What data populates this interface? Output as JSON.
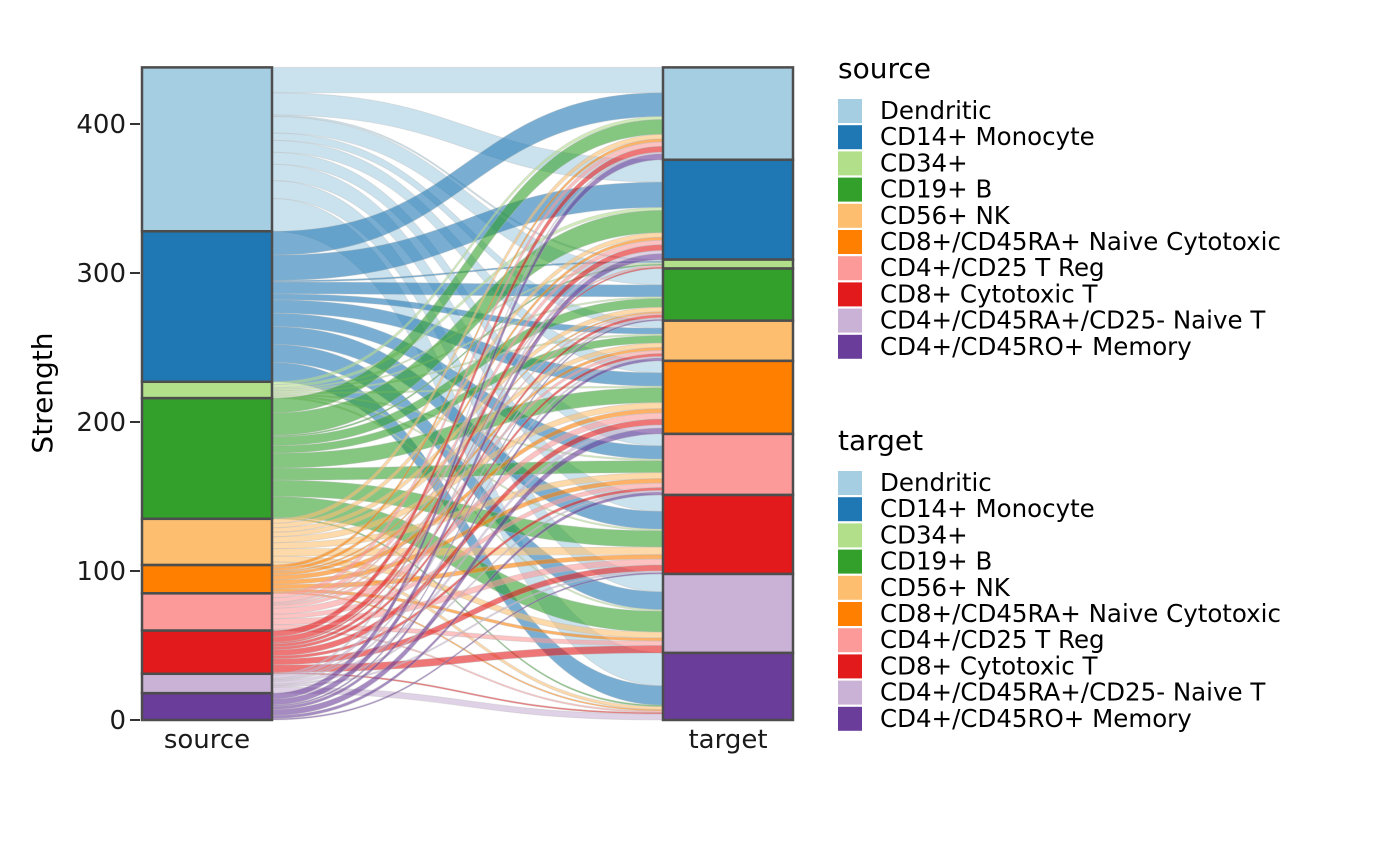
{
  "chart_data": {
    "type": "alluvial",
    "ylabel": "Strength",
    "ylim": [
      0,
      437
    ],
    "y_ticks": [
      0,
      100,
      200,
      300,
      400
    ],
    "axes": [
      "source",
      "target"
    ],
    "categories": [
      "Dendritic",
      "CD14+ Monocyte",
      "CD34+",
      "CD19+ B",
      "CD56+ NK",
      "CD8+/CD45RA+ Naive Cytotoxic",
      "CD4+/CD25 T Reg",
      "CD8+ Cytotoxic T",
      "CD4+/CD45RA+/CD25- Naive T",
      "CD4+/CD45RO+ Memory"
    ],
    "colors": [
      "#a6cee3",
      "#1f78b4",
      "#b2df8a",
      "#33a02c",
      "#fdbf6f",
      "#ff7f00",
      "#fb9a99",
      "#e31a1c",
      "#cab2d6",
      "#6a3d9a"
    ],
    "source_totals": [
      110,
      101,
      11,
      81,
      31,
      19,
      25,
      29,
      13,
      17
    ],
    "target_totals": [
      62,
      67,
      6,
      35,
      27,
      49,
      41,
      53,
      53,
      44
    ],
    "flows": [
      [
        17,
        15,
        1,
        11,
        5,
        8,
        8,
        11,
        12,
        22
      ],
      [
        16,
        17,
        1,
        8,
        4,
        9,
        9,
        12,
        12,
        13
      ],
      [
        2,
        2,
        1,
        1,
        1,
        1,
        1,
        1,
        1,
        0
      ],
      [
        10,
        15,
        1,
        6,
        5,
        10,
        8,
        11,
        14,
        1
      ],
      [
        3,
        3,
        0,
        3,
        3,
        4,
        4,
        5,
        4,
        2
      ],
      [
        2,
        2,
        0,
        1,
        2,
        3,
        3,
        3,
        2,
        1
      ],
      [
        3,
        3,
        1,
        1,
        2,
        4,
        3,
        4,
        3,
        1
      ],
      [
        4,
        4,
        1,
        2,
        2,
        4,
        2,
        4,
        5,
        1
      ],
      [
        1,
        2,
        0,
        1,
        1,
        2,
        1,
        1,
        0,
        4
      ],
      [
        4,
        4,
        0,
        1,
        2,
        4,
        2,
        1,
        0,
        -1
      ]
    ],
    "legends": [
      {
        "title": "source",
        "entries": [
          "Dendritic",
          "CD14+ Monocyte",
          "CD34+",
          "CD19+ B",
          "CD56+ NK",
          "CD8+/CD45RA+ Naive Cytotoxic",
          "CD4+/CD25 T Reg",
          "CD8+ Cytotoxic T",
          "CD4+/CD45RA+/CD25- Naive T",
          "CD4+/CD45RO+ Memory"
        ]
      },
      {
        "title": "target",
        "entries": [
          "Dendritic",
          "CD14+ Monocyte",
          "CD34+",
          "CD19+ B",
          "CD56+ NK",
          "CD8+/CD45RA+ Naive Cytotoxic",
          "CD4+/CD25 T Reg",
          "CD8+ Cytotoxic T",
          "CD4+/CD45RA+/CD25- Naive T",
          "CD4+/CD45RO+ Memory"
        ]
      }
    ]
  }
}
